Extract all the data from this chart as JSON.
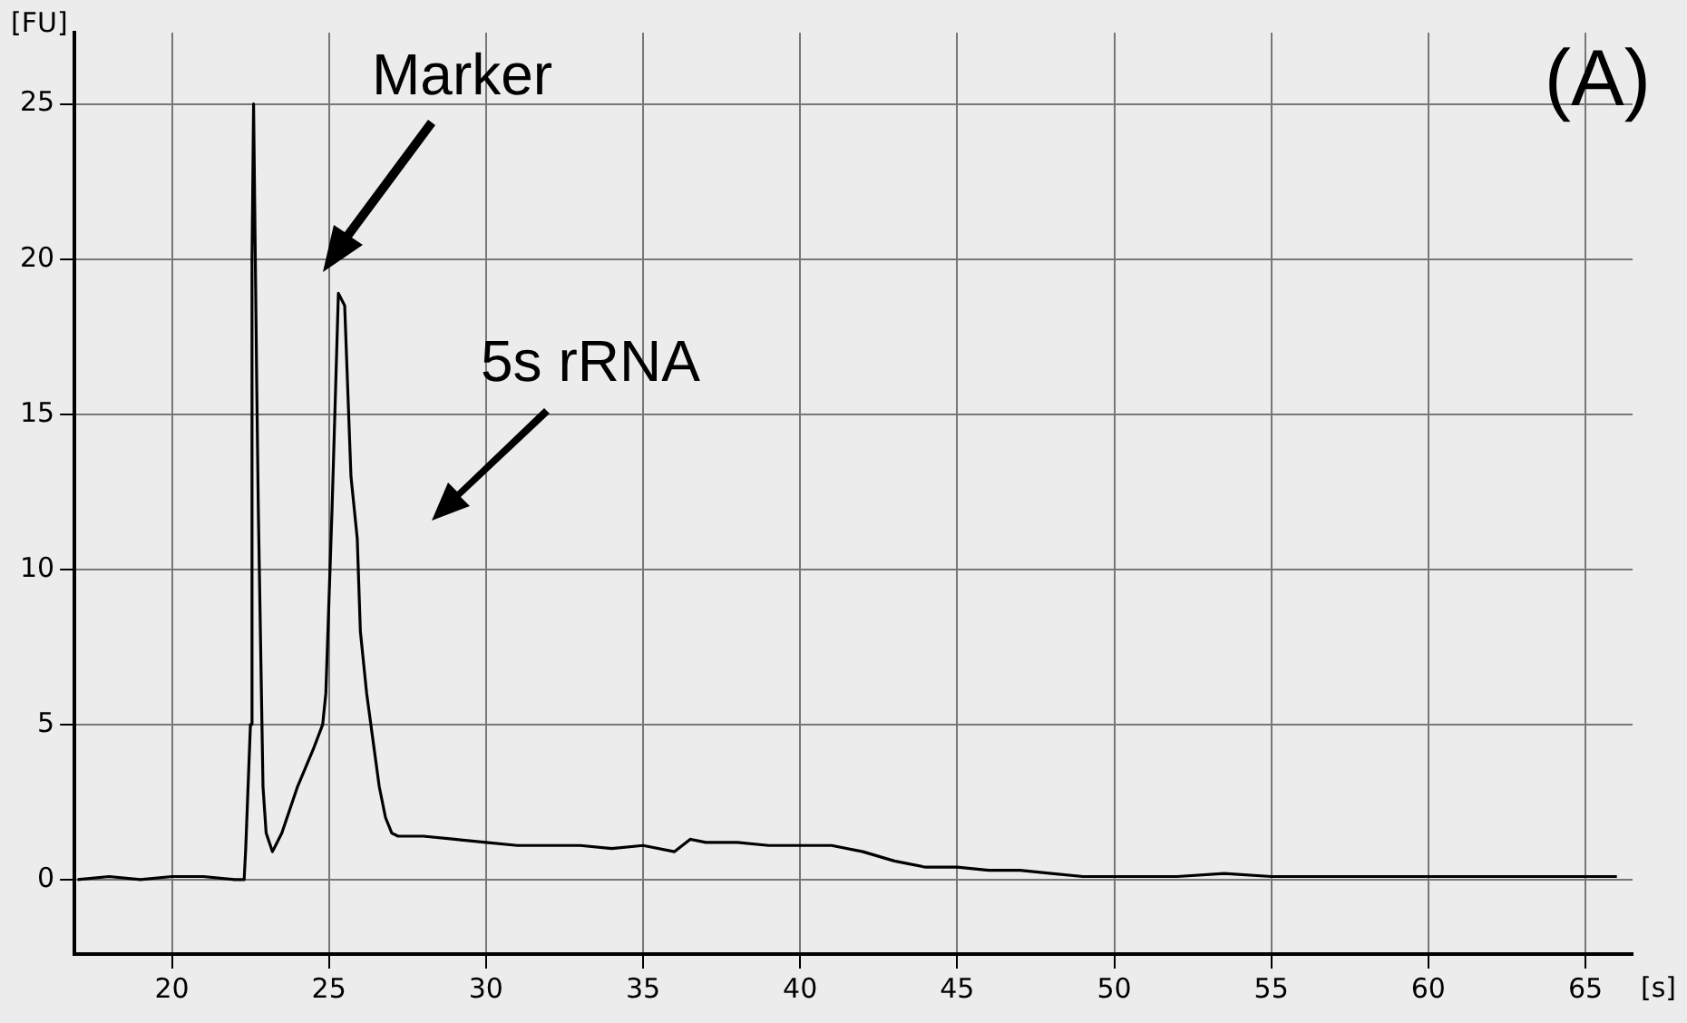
{
  "chart_data": {
    "type": "line",
    "xlabel": "[s]",
    "ylabel": "[FU]",
    "annotations": [
      "Marker",
      "5s rRNA",
      "(A)"
    ],
    "xlim": [
      16.9,
      66.5
    ],
    "ylim": [
      -2.4,
      27.3
    ],
    "xticks": [
      20,
      25,
      30,
      35,
      40,
      45,
      50,
      55,
      60,
      65
    ],
    "yticks": [
      0,
      5,
      10,
      15,
      20,
      25
    ],
    "grid": true,
    "legend": false,
    "marker": "none",
    "line_style": "solid",
    "series": [
      {
        "color": "#000000",
        "x": [
          17,
          18,
          19,
          20,
          21,
          22,
          22.3,
          22.35,
          22.5,
          22.55,
          22.6,
          22.7,
          22.75,
          22.9,
          23.0,
          23.2,
          23.5,
          24.0,
          24.5,
          24.8,
          24.9,
          25.1,
          25.3,
          25.5,
          25.7,
          25.9,
          26.0,
          26.2,
          26.4,
          26.6,
          26.8,
          27.0,
          27.2,
          28,
          29,
          30,
          31,
          32,
          33,
          34,
          35,
          36,
          36.5,
          37,
          38,
          39,
          40,
          41,
          42,
          43,
          44,
          45,
          46,
          47,
          48,
          49,
          50,
          52,
          53.5,
          55,
          58,
          60,
          62,
          64,
          66
        ],
        "values": [
          0,
          0.1,
          0,
          0.1,
          0.1,
          0,
          0,
          1,
          5,
          20,
          25,
          16,
          12,
          3,
          1.5,
          0.9,
          1.5,
          3,
          4.2,
          5,
          6,
          12,
          18.9,
          18.5,
          13,
          11,
          8,
          6,
          4.5,
          3,
          2,
          1.5,
          1.4,
          1.4,
          1.3,
          1.2,
          1.1,
          1.1,
          1.1,
          1.0,
          1.1,
          0.9,
          1.3,
          1.2,
          1.2,
          1.1,
          1.1,
          1.1,
          0.9,
          0.6,
          0.4,
          0.4,
          0.3,
          0.3,
          0.2,
          0.1,
          0.1,
          0.1,
          0.2,
          0.1,
          0.1,
          0.1,
          0.1,
          0.1,
          0.1
        ]
      }
    ]
  }
}
